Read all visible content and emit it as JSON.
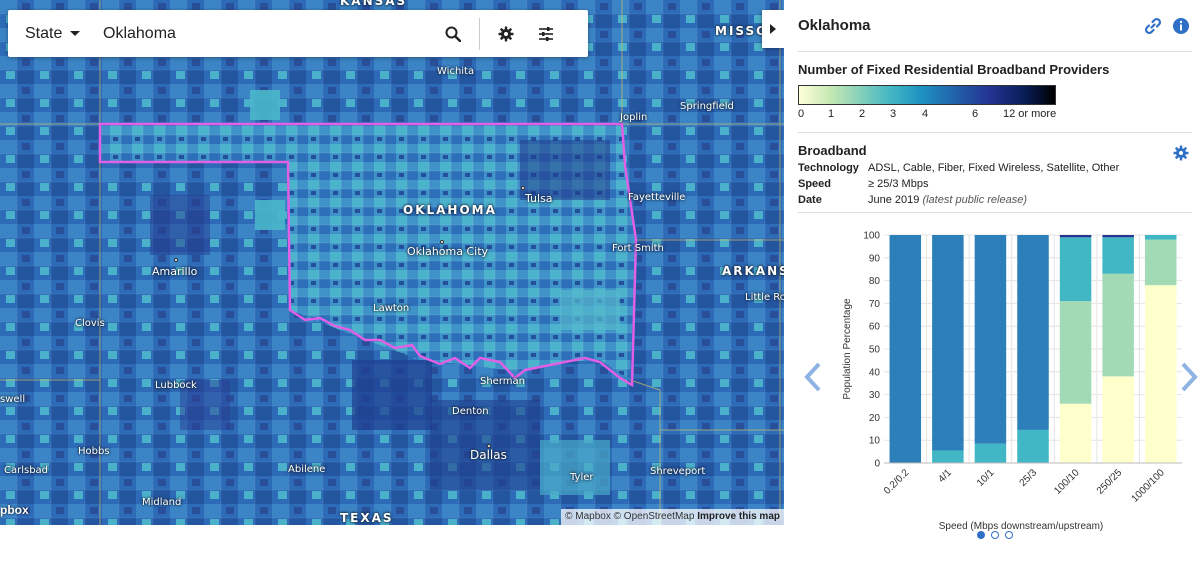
{
  "search": {
    "geography_type": "State",
    "value": "Oklahoma"
  },
  "map": {
    "labels": {
      "kansas": "KANSAS",
      "missouri": "MISSO",
      "oklahoma": "OKLAHOMA",
      "arkansas": "ARKANSA",
      "texas": "TEXAS",
      "wichita": "Wichita",
      "joplin": "Joplin",
      "springfield": "Springfield",
      "fayetteville": "Fayetteville",
      "tulsa": "Tulsa",
      "oklahoma_city": "Oklahoma City",
      "fort_smith": "Fort Smith",
      "amarillo": "Amarillo",
      "clovis": "Clovis",
      "lawton": "Lawton",
      "little_rock": "Little Rock",
      "lubbock": "Lubbock",
      "roswell": "swell",
      "sherman": "Sherman",
      "denton": "Denton",
      "dallas": "Dallas",
      "hobbs": "Hobbs",
      "carlsbad": "Carlsbad",
      "abilene": "Abilene",
      "tyler": "Tyler",
      "shreveport": "Shreveport",
      "midland": "Midland"
    },
    "attribution": {
      "mapbox": "© Mapbox",
      "osm": "© OpenStreetMap",
      "improve": "Improve this map"
    },
    "logo_text": "pbox"
  },
  "panel": {
    "title": "Oklahoma",
    "legend": {
      "title": "Number of Fixed Residential Broadband Providers",
      "ticks": [
        "0",
        "1",
        "2",
        "3",
        "4",
        "6",
        "12 or more"
      ]
    },
    "broadband": {
      "title": "Broadband",
      "rows": [
        {
          "key": "Technology",
          "value": "ADSL, Cable, Fiber, Fixed Wireless, Satellite, Other",
          "note": ""
        },
        {
          "key": "Speed",
          "value": "≥ 25/3 Mbps",
          "note": ""
        },
        {
          "key": "Date",
          "value": "June 2019",
          "note": "(latest public release)"
        }
      ]
    }
  },
  "colors": {
    "accent": "#2f70c7",
    "state_outline": "#e060e6",
    "map_base": "#2b64b0"
  },
  "chart_data": {
    "type": "bar",
    "stacked": true,
    "categories": [
      "0.2/0.2",
      "4/1",
      "10/1",
      "25/3",
      "100/10",
      "250/25",
      "1000/100"
    ],
    "xlabel": "Speed (Mbps downstream/upstream)",
    "ylabel": "Population Percentage",
    "ylim": [
      0,
      100
    ],
    "yticks": [
      0,
      10,
      20,
      30,
      40,
      50,
      60,
      70,
      80,
      90,
      100
    ],
    "series": [
      {
        "color": "#ffffcc",
        "values": [
          0,
          0,
          0,
          0,
          26,
          38,
          78
        ]
      },
      {
        "color": "#a1dab4",
        "values": [
          0,
          0,
          0,
          0,
          45,
          45,
          20
        ]
      },
      {
        "color": "#41b6c4",
        "values": [
          0,
          5.5,
          8.5,
          14.5,
          28,
          16,
          2
        ]
      },
      {
        "color": "#2c7fb8",
        "values": [
          100,
          94.5,
          91.5,
          85.5,
          0,
          0,
          0
        ]
      },
      {
        "color": "#253494",
        "values": [
          0,
          0,
          0,
          0,
          1,
          1,
          0
        ]
      }
    ],
    "grid": true
  }
}
